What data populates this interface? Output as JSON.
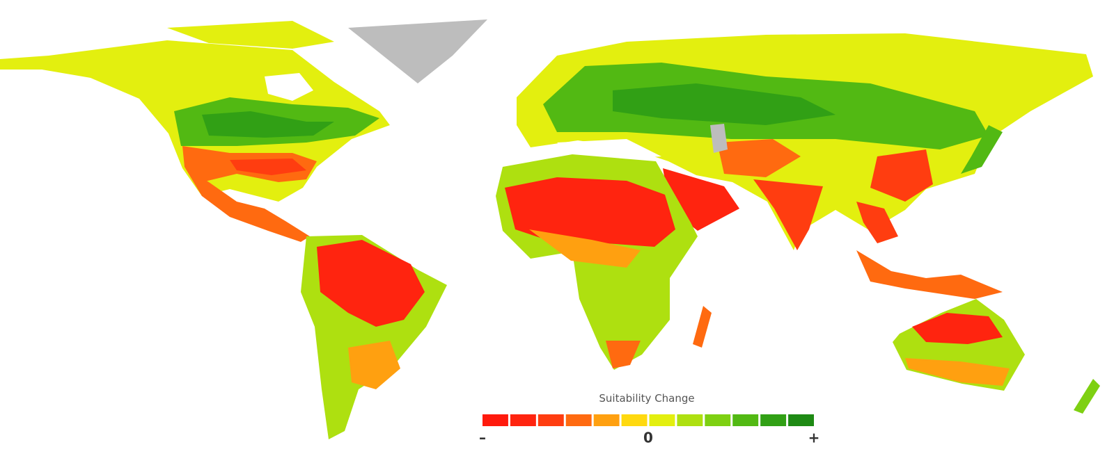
{
  "legend": {
    "title": "Suitability Change",
    "colors": [
      "#ff1a0d",
      "#ff240f",
      "#ff3d10",
      "#ff6a10",
      "#ffa010",
      "#ffd90f",
      "#e3ef0f",
      "#aee010",
      "#7ed012",
      "#52b913",
      "#31a015",
      "#1e8a14"
    ],
    "labels": [
      "–",
      "0",
      "+"
    ]
  }
}
